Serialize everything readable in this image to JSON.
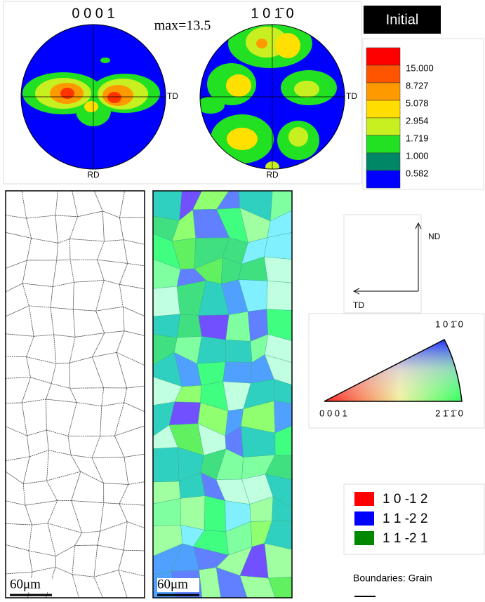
{
  "pole_figures": [
    {
      "label": "0 0 0 1",
      "td": "TD",
      "rd": "RD"
    },
    {
      "label": "1 0 1̄ 0",
      "td": "TD",
      "rd": "RD"
    }
  ],
  "max_label": "max=13.5",
  "badge": "Initial",
  "density_legend": [
    "15.000",
    "8.727",
    "5.078",
    "2.954",
    "1.719",
    "1.000",
    "0.582"
  ],
  "maps": [
    {
      "scale_bar": "60μm"
    },
    {
      "scale_bar": "60μm"
    }
  ],
  "axes": {
    "nd": "ND",
    "td": "TD"
  },
  "ipf": {
    "top": "1 0 1̄ 0",
    "left": "0 0 0 1",
    "right": "2 1̄ 1̄ 0"
  },
  "boundary_legend": {
    "entries": [
      "1 0 -1 2",
      "1 1 -2 2",
      "1 1 -2 1"
    ],
    "title": "Boundaries: Grain"
  }
}
